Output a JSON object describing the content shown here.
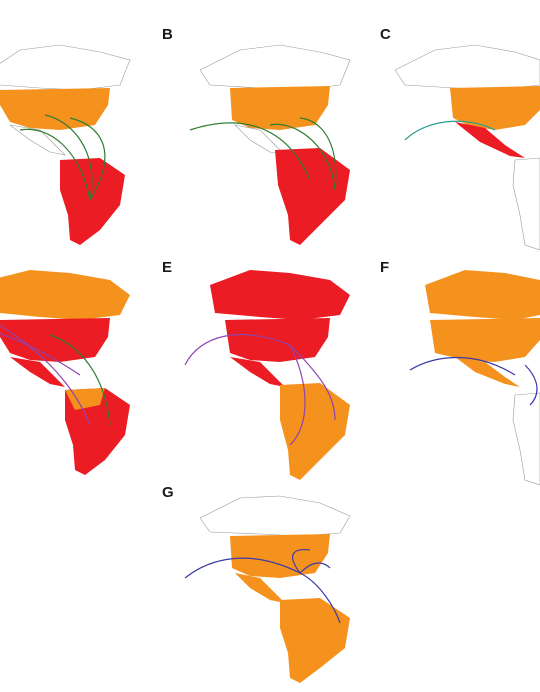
{
  "colors": {
    "red": "#ec1c24",
    "orange": "#f5921e",
    "outline": "#9a9a9a",
    "green_arrow": "#2e7d32",
    "purple_arrow": "#8e44ad",
    "blue_arrow": "#3a3aa8",
    "teal_arrow": "#2a9d8f"
  },
  "panels": [
    {
      "id": "A",
      "label": "",
      "fills": {
        "na": "orange",
        "sa": "red"
      },
      "arrow": "green_arrow"
    },
    {
      "id": "B",
      "label": "B",
      "fills": {
        "na": "orange",
        "sa": "red"
      },
      "arrow": "green_arrow"
    },
    {
      "id": "C",
      "label": "C",
      "fills": {
        "na": "orange",
        "mx": "red"
      },
      "arrow": "teal_arrow"
    },
    {
      "id": "D",
      "label": "",
      "fills": {
        "can": "orange",
        "na": "red",
        "sa": "orange"
      },
      "arrow": "purple_arrow"
    },
    {
      "id": "E",
      "label": "E",
      "fills": {
        "can": "red",
        "na": "red",
        "sa": "orange"
      },
      "arrow": "purple_arrow"
    },
    {
      "id": "F",
      "label": "F",
      "fills": {
        "can": "orange",
        "na": "orange"
      },
      "arrow": "blue_arrow"
    },
    {
      "id": "G",
      "label": "G",
      "fills": {
        "na": "orange",
        "sa": "orange"
      },
      "arrow": "blue_arrow"
    }
  ]
}
